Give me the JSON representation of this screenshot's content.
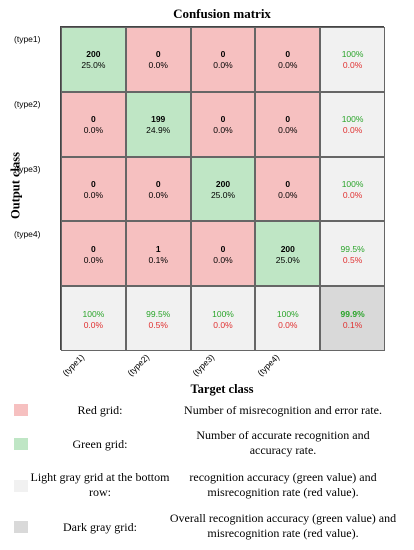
{
  "chart_data": {
    "type": "heatmap",
    "title": "Confusion matrix",
    "xlabel": "Target class",
    "ylabel": "Output class",
    "row_labels": [
      "(type1)",
      "(type2)",
      "(type3)",
      "(type4)"
    ],
    "col_labels": [
      "(type1)",
      "(type2)",
      "(type3)",
      "(type4)"
    ],
    "counts": [
      [
        200,
        0,
        0,
        0
      ],
      [
        0,
        199,
        0,
        0
      ],
      [
        0,
        0,
        200,
        0
      ],
      [
        0,
        1,
        0,
        200
      ]
    ],
    "percents": [
      [
        "25.0%",
        "0.0%",
        "0.0%",
        "0.0%"
      ],
      [
        "0.0%",
        "24.9%",
        "0.0%",
        "0.0%"
      ],
      [
        "0.0%",
        "0.0%",
        "25.0%",
        "0.0%"
      ],
      [
        "0.0%",
        "0.1%",
        "0.0%",
        "25.0%"
      ]
    ],
    "row_summary": [
      {
        "correct": "100%",
        "error": "0.0%"
      },
      {
        "correct": "100%",
        "error": "0.0%"
      },
      {
        "correct": "100%",
        "error": "0.0%"
      },
      {
        "correct": "99.5%",
        "error": "0.5%"
      }
    ],
    "col_summary": [
      {
        "correct": "100%",
        "error": "0.0%"
      },
      {
        "correct": "99.5%",
        "error": "0.5%"
      },
      {
        "correct": "100%",
        "error": "0.0%"
      },
      {
        "correct": "100%",
        "error": "0.0%"
      }
    ],
    "overall": {
      "correct": "99.9%",
      "error": "0.1%"
    },
    "colors": {
      "red_cell": "#f6c0c0",
      "green_cell": "#bfe6c5",
      "light_gray_cell": "#f1f1f1",
      "dark_gray_cell": "#d9d9d9",
      "green_text": "#2aa42a",
      "red_text": "#e03030"
    }
  },
  "legend": [
    {
      "swatch": "red",
      "label": "Red grid:",
      "description": "Number of misrecognition and error rate."
    },
    {
      "swatch": "green",
      "label": "Green grid:",
      "description": "Number of accurate recognition and accuracy rate."
    },
    {
      "swatch": "lgray",
      "label": "Light gray grid at the bottom row:",
      "description": "recognition accuracy (green value) and misrecognition rate (red value)."
    },
    {
      "swatch": "dgray",
      "label": "Dark gray grid:",
      "description": "Overall recognition accuracy (green value) and misrecognition rate (red value)."
    }
  ]
}
